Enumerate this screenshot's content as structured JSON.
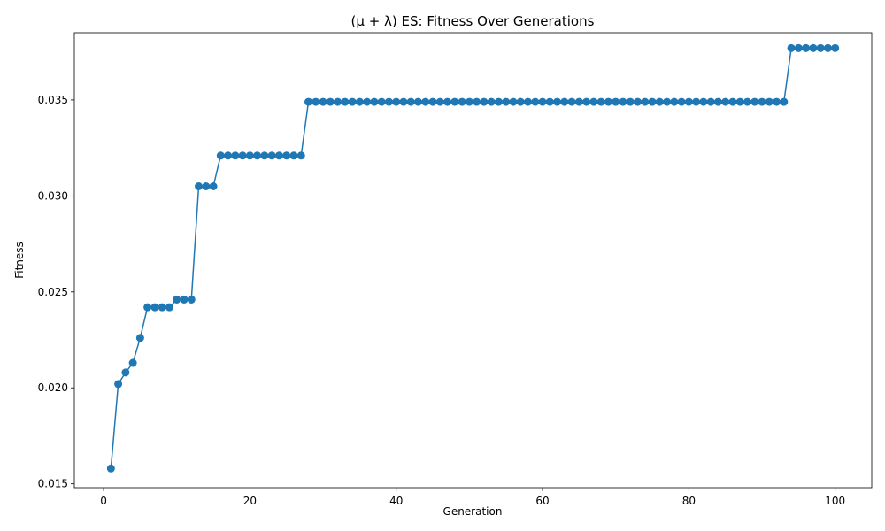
{
  "chart_data": {
    "type": "line",
    "title": "(μ + λ) ES: Fitness Over Generations",
    "xlabel": "Generation",
    "ylabel": "Fitness",
    "xlim": [
      -4,
      105
    ],
    "ylim": [
      0.0148,
      0.0385
    ],
    "xticks": [
      0,
      20,
      40,
      60,
      80,
      100
    ],
    "xtick_labels": [
      "0",
      "20",
      "40",
      "60",
      "80",
      "100"
    ],
    "yticks": [
      0.015,
      0.02,
      0.025,
      0.03,
      0.035
    ],
    "ytick_labels": [
      "0.015",
      "0.020",
      "0.025",
      "0.030",
      "0.035"
    ],
    "grid": false,
    "marker": "circle",
    "color": "#1f77b4",
    "series": [
      {
        "x": [
          1,
          2,
          3,
          4,
          5,
          6,
          7,
          8,
          9,
          10,
          11,
          12,
          13,
          14,
          15,
          16,
          17,
          18,
          19,
          20,
          21,
          22,
          23,
          24,
          25,
          26,
          27,
          28,
          29,
          30,
          31,
          32,
          33,
          34,
          35,
          36,
          37,
          38,
          39,
          40,
          41,
          42,
          43,
          44,
          45,
          46,
          47,
          48,
          49,
          50,
          51,
          52,
          53,
          54,
          55,
          56,
          57,
          58,
          59,
          60,
          61,
          62,
          63,
          64,
          65,
          66,
          67,
          68,
          69,
          70,
          71,
          72,
          73,
          74,
          75,
          76,
          77,
          78,
          79,
          80,
          81,
          82,
          83,
          84,
          85,
          86,
          87,
          88,
          89,
          90,
          91,
          92,
          93,
          94,
          95,
          96,
          97,
          98,
          99,
          100
        ],
        "y": [
          0.0158,
          0.0202,
          0.0208,
          0.0213,
          0.0226,
          0.0242,
          0.0242,
          0.0242,
          0.0242,
          0.0246,
          0.0246,
          0.0246,
          0.0305,
          0.0305,
          0.0305,
          0.0321,
          0.0321,
          0.0321,
          0.0321,
          0.0321,
          0.0321,
          0.0321,
          0.0321,
          0.0321,
          0.0321,
          0.0321,
          0.0321,
          0.0349,
          0.0349,
          0.0349,
          0.0349,
          0.0349,
          0.0349,
          0.0349,
          0.0349,
          0.0349,
          0.0349,
          0.0349,
          0.0349,
          0.0349,
          0.0349,
          0.0349,
          0.0349,
          0.0349,
          0.0349,
          0.0349,
          0.0349,
          0.0349,
          0.0349,
          0.0349,
          0.0349,
          0.0349,
          0.0349,
          0.0349,
          0.0349,
          0.0349,
          0.0349,
          0.0349,
          0.0349,
          0.0349,
          0.0349,
          0.0349,
          0.0349,
          0.0349,
          0.0349,
          0.0349,
          0.0349,
          0.0349,
          0.0349,
          0.0349,
          0.0349,
          0.0349,
          0.0349,
          0.0349,
          0.0349,
          0.0349,
          0.0349,
          0.0349,
          0.0349,
          0.0349,
          0.0349,
          0.0349,
          0.0349,
          0.0349,
          0.0349,
          0.0349,
          0.0349,
          0.0349,
          0.0349,
          0.0349,
          0.0349,
          0.0349,
          0.0349,
          0.0377,
          0.0377,
          0.0377,
          0.0377,
          0.0377,
          0.0377,
          0.0377
        ]
      }
    ]
  }
}
